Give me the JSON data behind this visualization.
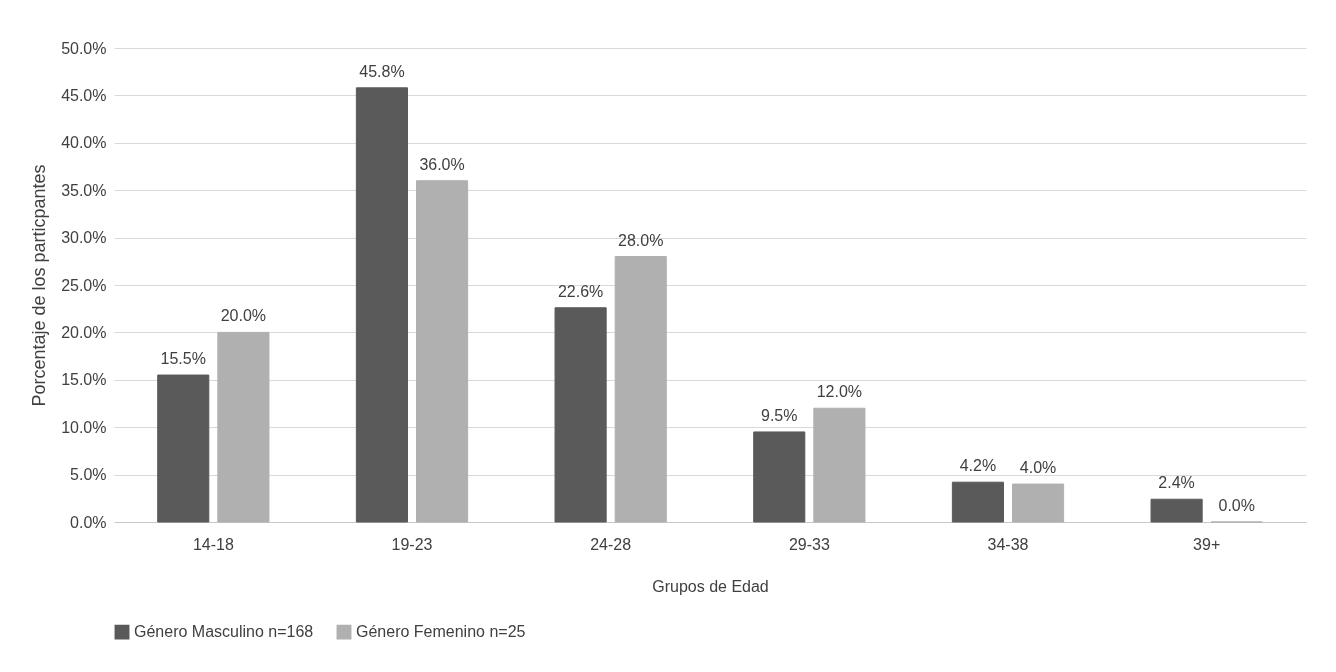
{
  "chart_data": {
    "type": "bar",
    "xlabel": "Grupos de Edad",
    "ylabel": "Porcentaje de los particpantes",
    "categories": [
      "14-18",
      "19-23",
      "24-28",
      "29-33",
      "34-38",
      "39+"
    ],
    "series": [
      {
        "name": "Género Masculino n=168",
        "color": "#5a5a5a",
        "values": [
          15.5,
          45.8,
          22.6,
          9.5,
          4.2,
          2.4
        ],
        "value_labels": [
          "15.5%",
          "45.8%",
          "22.6%",
          "9.5%",
          "4.2%",
          "2.4%"
        ]
      },
      {
        "name": "Género Femenino n=25",
        "color": "#b0b0b0",
        "values": [
          20.0,
          36.0,
          28.0,
          12.0,
          4.0,
          0.0
        ],
        "value_labels": [
          "20.0%",
          "36.0%",
          "28.0%",
          "12.0%",
          "4.0%",
          "0.0%"
        ]
      }
    ],
    "ylim": [
      0,
      50
    ],
    "yticks": [
      {
        "value": 0,
        "label": "0.0%"
      },
      {
        "value": 5,
        "label": "5.0%"
      },
      {
        "value": 10,
        "label": "10.0%"
      },
      {
        "value": 15,
        "label": "15.0%"
      },
      {
        "value": 20,
        "label": "20.0%"
      },
      {
        "value": 25,
        "label": "25.0%"
      },
      {
        "value": 30,
        "label": "30.0%"
      },
      {
        "value": 35,
        "label": "35.0%"
      },
      {
        "value": 40,
        "label": "40.0%"
      },
      {
        "value": 45,
        "label": "45.0%"
      },
      {
        "value": 50,
        "label": "50.0%"
      }
    ],
    "grid": "y",
    "legend": "bottom"
  }
}
